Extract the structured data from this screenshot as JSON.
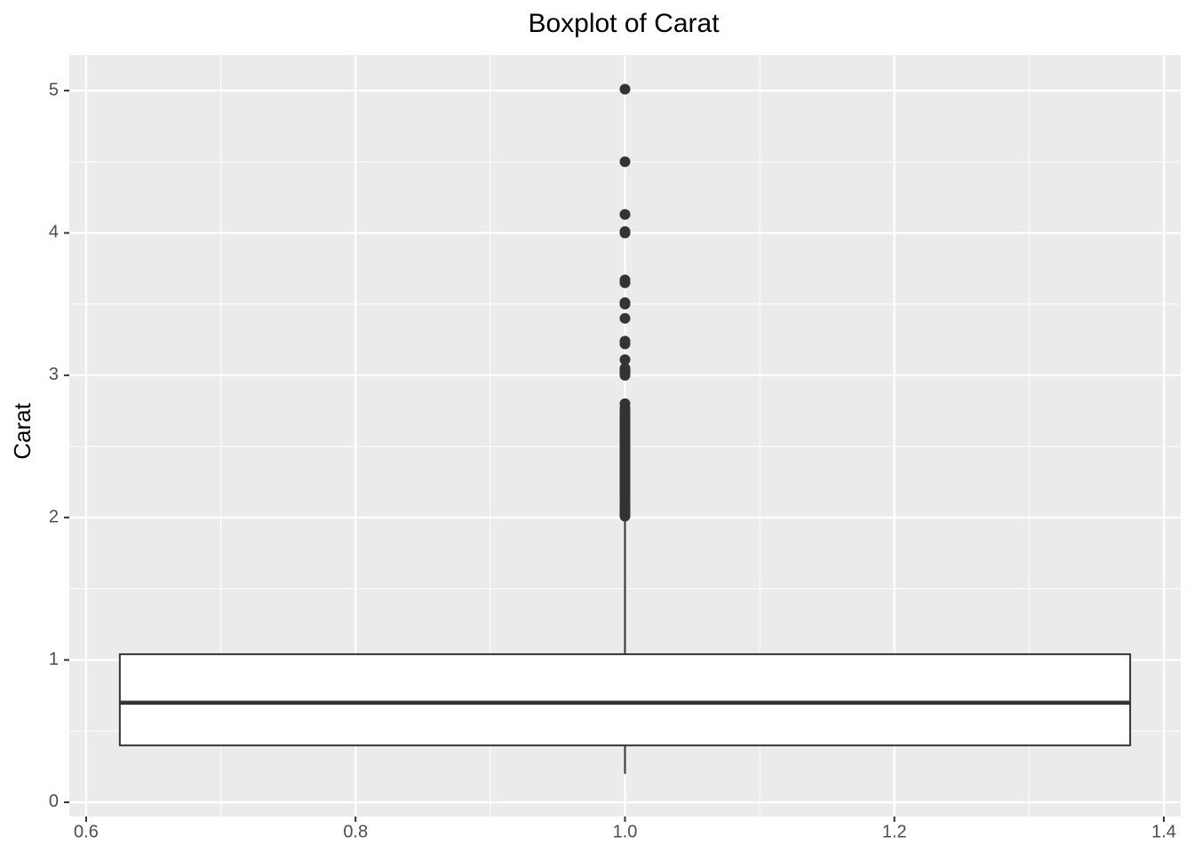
{
  "chart_data": {
    "type": "boxplot",
    "title": "Boxplot of Carat",
    "y_label": "Carat",
    "x": 1,
    "width": 0.75,
    "whisker_low": 0.2,
    "q1": 0.4,
    "median": 0.7,
    "q3": 1.04,
    "whisker_high": 2.0,
    "outliers": [
      2.01,
      2.02,
      2.03,
      2.04,
      2.05,
      2.06,
      2.07,
      2.08,
      2.09,
      2.1,
      2.12,
      2.14,
      2.15,
      2.16,
      2.17,
      2.18,
      2.19,
      2.2,
      2.21,
      2.22,
      2.23,
      2.24,
      2.25,
      2.26,
      2.27,
      2.28,
      2.29,
      2.3,
      2.31,
      2.32,
      2.33,
      2.34,
      2.35,
      2.36,
      2.37,
      2.38,
      2.39,
      2.4,
      2.41,
      2.42,
      2.43,
      2.44,
      2.45,
      2.46,
      2.47,
      2.48,
      2.49,
      2.5,
      2.51,
      2.52,
      2.53,
      2.54,
      2.55,
      2.56,
      2.57,
      2.58,
      2.59,
      2.6,
      2.61,
      2.63,
      2.64,
      2.65,
      2.66,
      2.67,
      2.68,
      2.7,
      2.71,
      2.72,
      2.74,
      2.75,
      2.77,
      2.8,
      3.0,
      3.01,
      3.02,
      3.03,
      3.04,
      3.05,
      3.11,
      3.22,
      3.24,
      3.4,
      3.5,
      3.51,
      3.65,
      3.67,
      4.0,
      4.01,
      4.13,
      4.5,
      5.01
    ],
    "color": "#333333",
    "box_fill": "#ffffff",
    "xlim": [
      0.5875,
      1.4125
    ],
    "xticks": [
      0.6,
      0.8,
      {
        "value": 1,
        "label": "1.0"
      },
      1.2,
      1.4
    ],
    "xminor": [
      0.7,
      0.9,
      1.1,
      1.3
    ],
    "ylim": [
      -0.1,
      5.25
    ],
    "yticks": [
      0,
      1,
      2,
      3,
      4,
      5
    ],
    "yminor": [
      0.5,
      1.5,
      2.5,
      3.5,
      4.5
    ],
    "grid": true
  }
}
